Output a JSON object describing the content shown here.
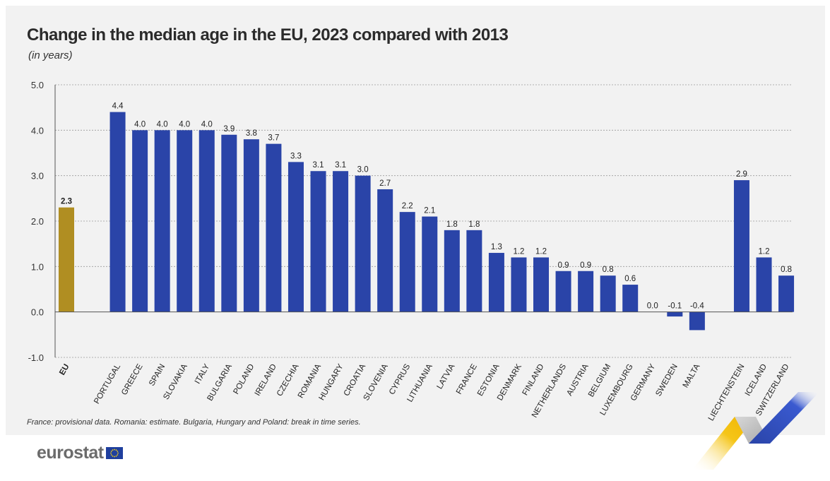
{
  "title": "Change in the median age in the EU, 2023 compared with 2013",
  "subtitle": "(in years)",
  "footnote": "France: provisional data. Romania: estimate. Bulgaria, Hungary and Poland: break in time series.",
  "logo_text": "eurostat",
  "colors": {
    "eu": "#b08e22",
    "countries": "#2a44a8",
    "grid": "#9a9a9a",
    "axis": "#555555",
    "panel": "#f2f2f2"
  },
  "chart_data": {
    "type": "bar",
    "categories": [
      "EU",
      "PORTUGAL",
      "GREECE",
      "SPAIN",
      "SLOVAKIA",
      "ITALY",
      "BULGARIA",
      "POLAND",
      "IRELAND",
      "CZECHIA",
      "ROMANIA",
      "HUNGARY",
      "CROATIA",
      "SLOVENIA",
      "CYPRUS",
      "LITHUANIA",
      "LATVIA",
      "FRANCE",
      "ESTONIA",
      "DENMARK",
      "FINLAND",
      "NETHERLANDS",
      "AUSTRIA",
      "BELGIUM",
      "LUXEMBOURG",
      "GERMANY",
      "SWEDEN",
      "MALTA",
      "LIECHTENSTEIN",
      "ICELAND",
      "SWITZERLAND"
    ],
    "values": [
      2.3,
      4.4,
      4.0,
      4.0,
      4.0,
      4.0,
      3.9,
      3.8,
      3.7,
      3.3,
      3.1,
      3.1,
      3.0,
      2.7,
      2.2,
      2.1,
      1.8,
      1.8,
      1.3,
      1.2,
      1.2,
      0.9,
      0.9,
      0.8,
      0.6,
      0.0,
      -0.1,
      -0.4,
      2.9,
      1.2,
      0.8
    ],
    "value_labels": [
      "2.3",
      "4.4",
      "4.0",
      "4.0",
      "4.0",
      "4.0",
      "3.9",
      "3.8",
      "3.7",
      "3.3",
      "3.1",
      "3.1",
      "3.0",
      "2.7",
      "2.2",
      "2.1",
      "1.8",
      "1.8",
      "1.3",
      "1.2",
      "1.2",
      "0.9",
      "0.9",
      "0.8",
      "0.6",
      "0.0",
      "-0.1",
      "-0.4",
      "2.9",
      "1.2",
      "0.8"
    ],
    "groups": [
      "eu",
      "eu_member",
      "eu_member",
      "eu_member",
      "eu_member",
      "eu_member",
      "eu_member",
      "eu_member",
      "eu_member",
      "eu_member",
      "eu_member",
      "eu_member",
      "eu_member",
      "eu_member",
      "eu_member",
      "eu_member",
      "eu_member",
      "eu_member",
      "eu_member",
      "eu_member",
      "eu_member",
      "eu_member",
      "eu_member",
      "eu_member",
      "eu_member",
      "eu_member",
      "eu_member",
      "eu_member",
      "efta",
      "efta",
      "efta"
    ],
    "y_ticks": [
      "5.0",
      "4.0",
      "3.0",
      "2.0",
      "1.0",
      "0.0",
      "-1.0"
    ],
    "ylim": [
      -1.0,
      5.0
    ],
    "grid": true,
    "xlabel": "",
    "ylabel": ""
  }
}
